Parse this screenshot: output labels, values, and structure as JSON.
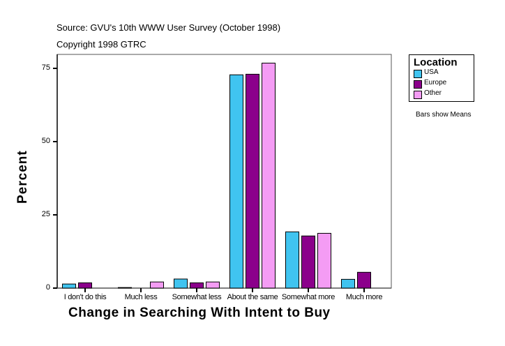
{
  "chart_data": {
    "type": "bar",
    "subtitle_lines": [
      "Source: GVU's 10th WWW User Survey (October 1998)",
      "Copyright 1998 GTRC"
    ],
    "xlabel": "Change in Searching With Intent to Buy",
    "ylabel": "Percent",
    "ylim": [
      0,
      80
    ],
    "yticks": [
      0,
      25,
      50,
      75
    ],
    "categories": [
      "I don't do this",
      "Much less",
      "Somewhat less",
      "About the same",
      "Somewhat more",
      "Much more"
    ],
    "legend_title": "Location",
    "legend_position": "right",
    "note": "Bars show Means",
    "series": [
      {
        "name": "USA",
        "color": "#40c4f0",
        "values": [
          1.4,
          0.2,
          3.1,
          72.8,
          19.2,
          3.0
        ]
      },
      {
        "name": "Europe",
        "color": "#8b008b",
        "values": [
          1.8,
          0,
          1.8,
          73.0,
          17.8,
          5.4
        ]
      },
      {
        "name": "Other",
        "color": "#f49cf4",
        "values": [
          0,
          2.1,
          2.1,
          76.8,
          18.7,
          0
        ]
      }
    ]
  }
}
